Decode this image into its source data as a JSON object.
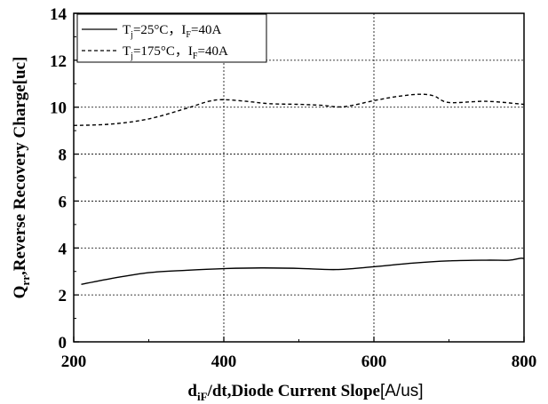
{
  "chart_data": {
    "type": "line",
    "xlim": [
      200,
      800
    ],
    "ylim": [
      0,
      14
    ],
    "x_ticks": [
      200,
      400,
      600,
      800
    ],
    "y_ticks": [
      0,
      2,
      4,
      6,
      8,
      10,
      12,
      14
    ],
    "x_tick_labels": [
      "200",
      "400",
      "600",
      "800"
    ],
    "y_tick_labels": [
      "0",
      "2",
      "4",
      "6",
      "8",
      "10",
      "12",
      "14"
    ],
    "xlabel": {
      "main": "d",
      "sub": "iF",
      "rest": "/dt,Diode Current Slope",
      "unit": "[A/us]"
    },
    "ylabel": {
      "main": "Q",
      "sub": "rr",
      "rest": ",Reverse Recovery Charge[uc]"
    },
    "grid": true,
    "legend_position": "top-left",
    "series": [
      {
        "name_parts": {
          "a": "T",
          "a_sub": "j",
          "b": "=25°C，I",
          "b_sub": "F",
          "c": "=40A"
        },
        "style": "solid",
        "color": "#000000",
        "x": [
          210,
          250,
          300,
          350,
          400,
          450,
          500,
          550,
          600,
          650,
          700,
          750,
          780,
          795,
          800
        ],
        "y": [
          2.45,
          2.7,
          2.95,
          3.05,
          3.12,
          3.15,
          3.13,
          3.08,
          3.2,
          3.35,
          3.45,
          3.48,
          3.48,
          3.56,
          3.55
        ]
      },
      {
        "name_parts": {
          "a": "T",
          "a_sub": "j",
          "b": "=175°C，I",
          "b_sub": "F",
          "c": "=40A"
        },
        "style": "dashed",
        "color": "#000000",
        "x": [
          200,
          250,
          300,
          350,
          380,
          400,
          430,
          460,
          500,
          530,
          560,
          600,
          630,
          660,
          680,
          700,
          750,
          800
        ],
        "y": [
          9.22,
          9.28,
          9.5,
          9.95,
          10.25,
          10.32,
          10.25,
          10.15,
          10.12,
          10.08,
          10.02,
          10.28,
          10.45,
          10.55,
          10.48,
          10.2,
          10.25,
          10.12
        ]
      }
    ]
  }
}
